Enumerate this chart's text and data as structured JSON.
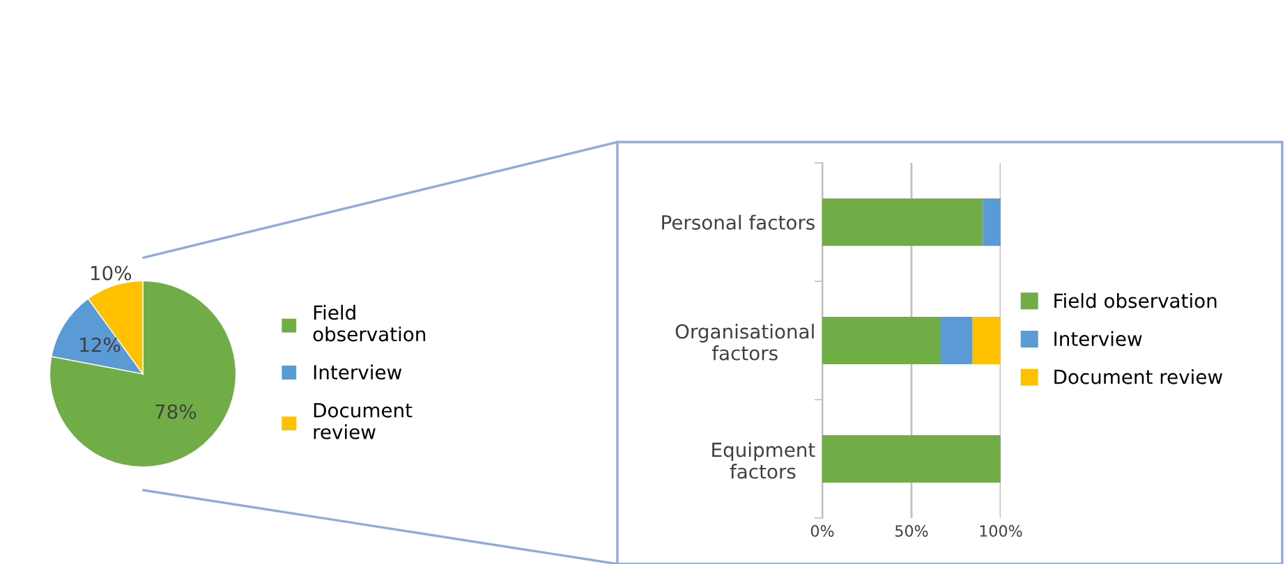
{
  "chart_data": [
    {
      "type": "pie",
      "categories": [
        "Field observation",
        "Interview",
        "Document review"
      ],
      "values": [
        78,
        12,
        10
      ],
      "colors": [
        "#70ad47",
        "#5b9bd5",
        "#ffc000"
      ],
      "value_labels": [
        "78%",
        "12%",
        "10%"
      ],
      "legend": "right"
    },
    {
      "type": "bar",
      "orientation": "horizontal",
      "stacked": true,
      "categories": [
        "Personal factors",
        "Organisational factors",
        "Equipment factors"
      ],
      "series": [
        {
          "name": "Field observation",
          "color": "#70ad47",
          "values": [
            90,
            66,
            100
          ]
        },
        {
          "name": "Interview",
          "color": "#5b9bd5",
          "values": [
            10,
            18,
            0
          ]
        },
        {
          "name": "Document review",
          "color": "#ffc000",
          "values": [
            0,
            16,
            0
          ]
        }
      ],
      "xlim": [
        0,
        100
      ],
      "xticks": [
        {
          "value": 0,
          "label": "0%"
        },
        {
          "value": 50,
          "label": "50%"
        },
        {
          "value": 100,
          "label": "100%"
        }
      ],
      "grid": "x",
      "legend": "right"
    }
  ]
}
